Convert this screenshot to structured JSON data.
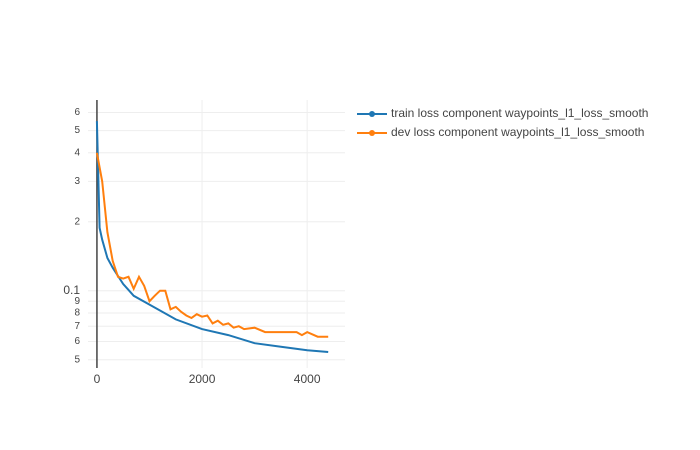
{
  "chart_data": {
    "type": "line",
    "series": [
      {
        "name": "train loss component waypoints_l1_loss_smooth",
        "color": "#1f77b4",
        "x": [
          0,
          50,
          100,
          200,
          300,
          400,
          500,
          700,
          1000,
          1500,
          2000,
          2500,
          3000,
          3500,
          4000,
          4400
        ],
        "values": [
          0.55,
          0.188,
          0.167,
          0.139,
          0.126,
          0.116,
          0.107,
          0.095,
          0.087,
          0.075,
          0.068,
          0.064,
          0.059,
          0.057,
          0.055,
          0.054
        ]
      },
      {
        "name": "dev loss component waypoints_l1_loss_smooth",
        "color": "#ff7f0e",
        "x": [
          0,
          100,
          200,
          300,
          400,
          500,
          600,
          700,
          800,
          900,
          1000,
          1100,
          1200,
          1300,
          1400,
          1500,
          1600,
          1700,
          1800,
          1900,
          2000,
          2100,
          2200,
          2300,
          2400,
          2500,
          2600,
          2700,
          2800,
          3000,
          3200,
          3500,
          3800,
          3900,
          4000,
          4200,
          4400
        ],
        "values": [
          0.4,
          0.3,
          0.18,
          0.135,
          0.115,
          0.113,
          0.115,
          0.102,
          0.115,
          0.105,
          0.09,
          0.095,
          0.1,
          0.1,
          0.083,
          0.085,
          0.081,
          0.078,
          0.076,
          0.079,
          0.077,
          0.078,
          0.072,
          0.074,
          0.071,
          0.072,
          0.069,
          0.07,
          0.068,
          0.069,
          0.066,
          0.066,
          0.066,
          0.064,
          0.066,
          0.063,
          0.063
        ]
      }
    ],
    "xlim": [
      -170,
      4720
    ],
    "xticks": [
      0,
      2000,
      4000
    ],
    "ylim": [
      0.046,
      0.68
    ],
    "log_y": true,
    "yticks": [
      {
        "value": 0.05,
        "label": "5"
      },
      {
        "value": 0.06,
        "label": "6"
      },
      {
        "value": 0.07,
        "label": "7"
      },
      {
        "value": 0.08,
        "label": "8"
      },
      {
        "value": 0.09,
        "label": "9"
      },
      0.1,
      {
        "value": 0.2,
        "label": "2"
      },
      {
        "value": 0.3,
        "label": "3"
      },
      {
        "value": 0.4,
        "label": "4"
      },
      {
        "value": 0.5,
        "label": "5"
      },
      {
        "value": 0.6,
        "label": "6"
      }
    ],
    "grid": true,
    "legend": "right"
  }
}
